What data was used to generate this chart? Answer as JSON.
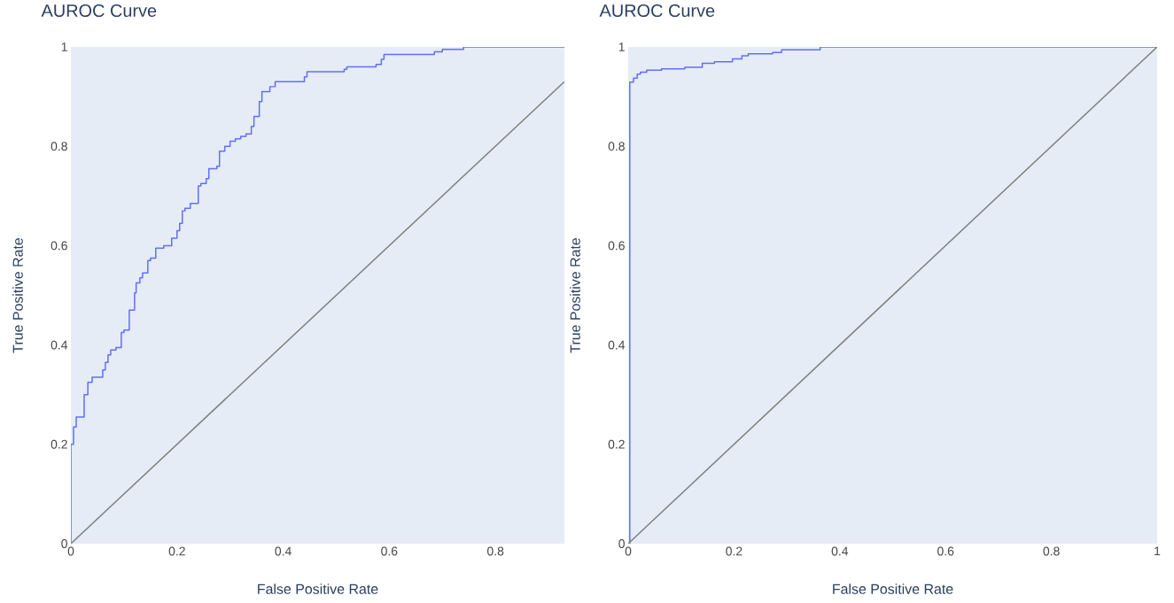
{
  "chart_data": [
    {
      "type": "line",
      "title": "AUROC Curve",
      "xlabel": "False Positive Rate",
      "ylabel": "True Positive Rate",
      "xlim": [
        0,
        0.93
      ],
      "ylim": [
        0,
        1
      ],
      "xticks": [
        0,
        0.2,
        0.4,
        0.6,
        0.8
      ],
      "yticks": [
        0,
        0.2,
        0.4,
        0.6,
        0.8,
        1
      ],
      "series": [
        {
          "type": "step",
          "color": "#636efa",
          "x": [
            0,
            0,
            0.005,
            0.01,
            0.025,
            0.032,
            0.04,
            0.06,
            0.065,
            0.07,
            0.075,
            0.085,
            0.095,
            0.1,
            0.11,
            0.12,
            0.123,
            0.13,
            0.135,
            0.145,
            0.15,
            0.16,
            0.175,
            0.19,
            0.2,
            0.205,
            0.21,
            0.215,
            0.225,
            0.24,
            0.245,
            0.255,
            0.26,
            0.275,
            0.28,
            0.29,
            0.3,
            0.31,
            0.32,
            0.33,
            0.34,
            0.345,
            0.355,
            0.36,
            0.375,
            0.385,
            0.44,
            0.445,
            0.515,
            0.52,
            0.575,
            0.585,
            0.59,
            0.685,
            0.7,
            0.74,
            0.93
          ],
          "values": [
            0,
            0.2,
            0.235,
            0.255,
            0.3,
            0.325,
            0.335,
            0.35,
            0.365,
            0.38,
            0.39,
            0.395,
            0.425,
            0.43,
            0.47,
            0.505,
            0.525,
            0.535,
            0.545,
            0.57,
            0.575,
            0.595,
            0.6,
            0.615,
            0.63,
            0.645,
            0.67,
            0.675,
            0.685,
            0.72,
            0.725,
            0.735,
            0.755,
            0.76,
            0.79,
            0.8,
            0.81,
            0.815,
            0.82,
            0.825,
            0.84,
            0.86,
            0.89,
            0.91,
            0.92,
            0.93,
            0.94,
            0.95,
            0.955,
            0.96,
            0.965,
            0.975,
            0.985,
            0.99,
            0.995,
            1,
            1
          ]
        },
        {
          "type": "line",
          "color": "#7f7f7f",
          "x": [
            0,
            0.93
          ],
          "values": [
            0,
            0.93
          ]
        }
      ]
    },
    {
      "type": "line",
      "title": "AUROC Curve",
      "xlabel": "False Positive Rate",
      "ylabel": "True Positive Rate",
      "xlim": [
        0,
        1
      ],
      "ylim": [
        0,
        1
      ],
      "xticks": [
        0,
        0.2,
        0.4,
        0.6,
        0.8,
        1
      ],
      "yticks": [
        0,
        0.2,
        0.4,
        0.6,
        0.8,
        1
      ],
      "series": [
        {
          "type": "step",
          "color": "#636efa",
          "x": [
            0,
            0.003,
            0.01,
            0.017,
            0.023,
            0.035,
            0.063,
            0.107,
            0.14,
            0.163,
            0.197,
            0.215,
            0.227,
            0.273,
            0.29,
            0.363,
            1
          ],
          "values": [
            0,
            0.929,
            0.937,
            0.945,
            0.949,
            0.953,
            0.956,
            0.959,
            0.967,
            0.97,
            0.976,
            0.982,
            0.986,
            0.989,
            0.994,
            1,
            1
          ]
        },
        {
          "type": "line",
          "color": "#7f7f7f",
          "x": [
            0,
            1
          ],
          "values": [
            0,
            1
          ]
        }
      ]
    }
  ]
}
